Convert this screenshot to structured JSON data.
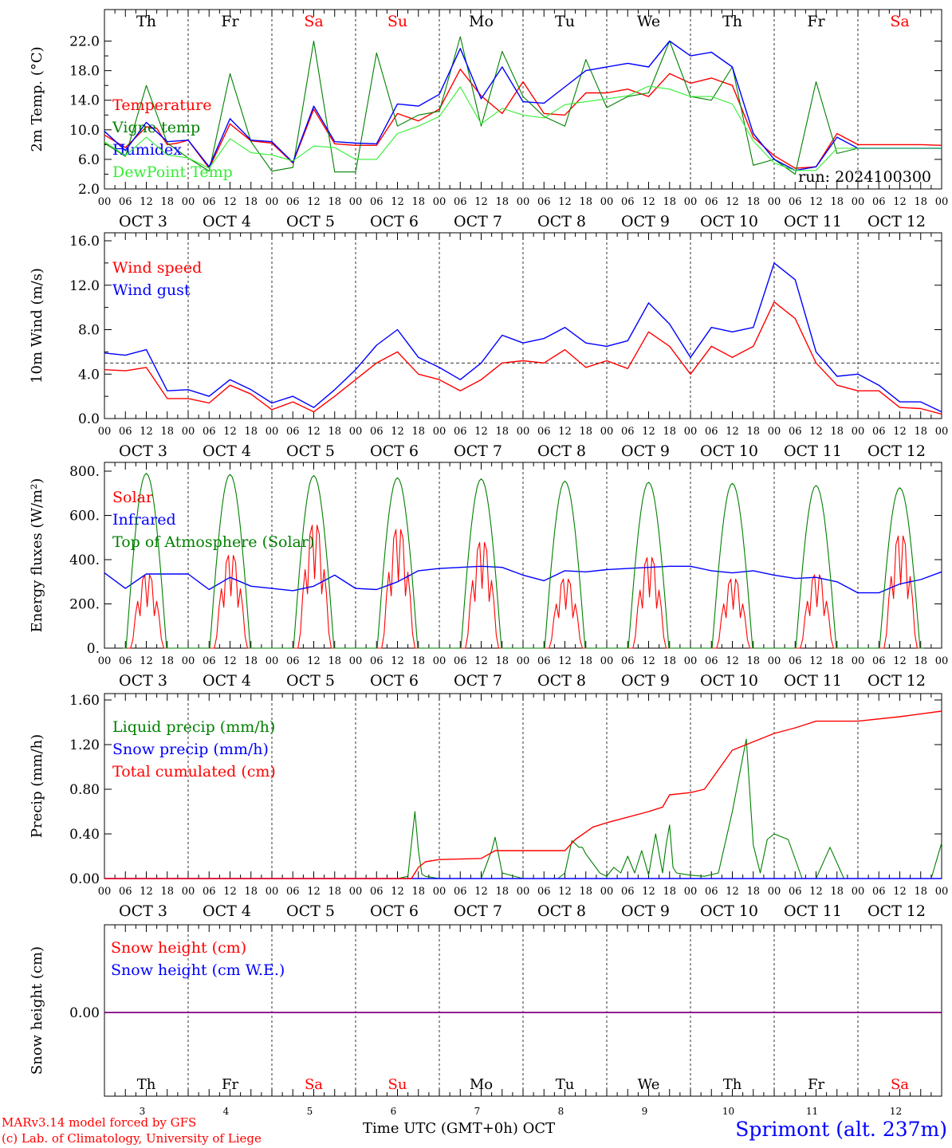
{
  "colors": {
    "red": "#ff0000",
    "green": "#008000",
    "blue": "#0000ff",
    "lightgreen": "#33ee33",
    "weekend": "#ff0000",
    "purple": "#800080"
  },
  "days": [
    "Th",
    "Fr",
    "Sa",
    "Su",
    "Mo",
    "Tu",
    "We",
    "Th",
    "Fr",
    "Sa"
  ],
  "weekend_days": [
    2,
    3,
    9
  ],
  "hour_ticks": [
    "00",
    "06",
    "12",
    "18"
  ],
  "date_labels": [
    "OCT  3",
    "OCT  4",
    "OCT  5",
    "OCT  6",
    "OCT  7",
    "OCT  8",
    "OCT  9",
    "OCT 10",
    "OCT 11",
    "OCT 12"
  ],
  "day_numbers": [
    "3",
    "4",
    "5",
    "6",
    "7",
    "8",
    "9",
    "10",
    "11",
    "12"
  ],
  "footer": {
    "credit_line1": "MARv3.14 model forced by GFS",
    "credit_line2": "(c) Lab. of Climatology, University of Liege",
    "xlabel": "Time UTC (GMT+0h) OCT",
    "station": "Sprimont (alt. 237m)"
  },
  "chart_data": [
    {
      "type": "line",
      "ylabel": "2m Temp. (°C)",
      "ylim": [
        2,
        24
      ],
      "yticks": [
        "2.0",
        "6.0",
        "10.0",
        "14.0",
        "18.0",
        "22.0"
      ],
      "yticks_values": [
        2,
        6,
        10,
        14,
        18,
        22
      ],
      "annotation": "run: 2024100300",
      "x_unit": "hours since Oct 3 00 UTC",
      "series": [
        {
          "name": "Temperature",
          "color": "red",
          "x": [
            0,
            6,
            12,
            15,
            18,
            21,
            24,
            30,
            36,
            42,
            48,
            54,
            60,
            66,
            72,
            78,
            84,
            90,
            96,
            102,
            108,
            114,
            120,
            126,
            132,
            138,
            144,
            150,
            156,
            162,
            168,
            174,
            180,
            186,
            192,
            198,
            204,
            210,
            216,
            222,
            228,
            234,
            240
          ],
          "y": [
            9.3,
            7.6,
            10.4,
            10.2,
            8.0,
            8.2,
            8.6,
            4.8,
            10.8,
            8.5,
            8.2,
            5.5,
            12.8,
            8.1,
            7.9,
            7.9,
            12.2,
            11.2,
            12.8,
            18.2,
            14.6,
            12.2,
            16.5,
            12.2,
            12.0,
            15.0,
            15.0,
            15.5,
            14.5,
            17.6,
            16.3,
            17.0,
            16.0,
            9.0,
            6.5,
            4.8,
            5.0,
            9.5,
            8.0,
            8.0,
            8.0,
            8.0,
            7.9
          ]
        },
        {
          "name": "Vigne temp",
          "color": "green",
          "x": [
            0,
            6,
            12,
            18,
            24,
            30,
            36,
            42,
            48,
            54,
            60,
            66,
            72,
            78,
            84,
            90,
            96,
            102,
            108,
            114,
            120,
            126,
            132,
            138,
            144,
            150,
            156,
            162,
            168,
            174,
            180,
            186,
            192,
            198,
            204,
            210,
            216,
            222,
            228,
            234,
            240
          ],
          "y": [
            8.2,
            6.4,
            16.0,
            8.2,
            6.2,
            4.4,
            17.6,
            8.4,
            4.4,
            4.9,
            22.0,
            4.3,
            4.3,
            20.4,
            10.5,
            12.0,
            12.5,
            22.6,
            10.5,
            20.6,
            14.5,
            11.8,
            10.5,
            19.5,
            13.0,
            14.5,
            15.0,
            22.0,
            14.5,
            14.0,
            18.5,
            5.2,
            6.0,
            4.0,
            16.5,
            6.8,
            7.5,
            7.5,
            7.5,
            7.5,
            7.5
          ]
        },
        {
          "name": "Humidex",
          "color": "blue",
          "x": [
            0,
            6,
            12,
            18,
            24,
            30,
            36,
            42,
            48,
            54,
            60,
            66,
            72,
            78,
            84,
            90,
            96,
            102,
            108,
            114,
            120,
            126,
            132,
            138,
            144,
            150,
            156,
            162,
            168,
            174,
            180,
            186,
            192,
            198,
            204,
            210,
            216,
            222,
            228,
            234,
            240
          ],
          "y": [
            9.8,
            7.2,
            11.0,
            8.4,
            8.6,
            5.0,
            11.5,
            8.6,
            8.4,
            5.6,
            13.2,
            8.4,
            8.2,
            8.1,
            13.5,
            13.2,
            14.8,
            21.0,
            14.2,
            18.5,
            13.8,
            13.6,
            15.8,
            18.0,
            18.5,
            19.0,
            18.5,
            22.0,
            20.0,
            20.5,
            18.5,
            9.5,
            6.0,
            4.5,
            5.0,
            9.0,
            7.5,
            7.5,
            7.5,
            7.5,
            7.5
          ]
        },
        {
          "name": "DewPoint Temp",
          "color": "lightgreen",
          "x": [
            0,
            6,
            12,
            18,
            24,
            30,
            36,
            42,
            48,
            54,
            60,
            66,
            72,
            78,
            84,
            90,
            96,
            102,
            108,
            114,
            120,
            126,
            132,
            138,
            144,
            150,
            156,
            162,
            168,
            174,
            180,
            186,
            192,
            198,
            204,
            210,
            216,
            222,
            228,
            234,
            240
          ],
          "y": [
            8.4,
            6.5,
            9.0,
            6.6,
            6.2,
            4.8,
            8.8,
            6.9,
            6.6,
            5.8,
            7.8,
            7.6,
            6.0,
            6.0,
            9.5,
            10.5,
            11.8,
            15.8,
            10.8,
            12.9,
            12.0,
            11.6,
            13.4,
            13.8,
            14.2,
            14.6,
            15.9,
            15.5,
            14.5,
            14.5,
            13.5,
            8.5,
            5.5,
            4.5,
            4.5,
            7.5,
            7.5,
            7.5,
            7.5,
            7.5,
            7.5
          ]
        }
      ]
    },
    {
      "type": "line",
      "ylabel": "10m Wind (m/s)",
      "ylim": [
        0,
        16
      ],
      "yticks": [
        "0.0",
        "4.0",
        "8.0",
        "12.0",
        "16.0"
      ],
      "yticks_values": [
        0,
        4,
        8,
        12,
        16
      ],
      "reference_line": 5,
      "x_unit": "hours since Oct 3 00 UTC",
      "series": [
        {
          "name": "Wind speed",
          "color": "red",
          "x": [
            0,
            6,
            12,
            18,
            24,
            30,
            36,
            42,
            48,
            54,
            60,
            66,
            72,
            78,
            84,
            90,
            96,
            102,
            108,
            114,
            120,
            126,
            132,
            138,
            144,
            150,
            156,
            162,
            168,
            174,
            180,
            186,
            192,
            198,
            204,
            210,
            216,
            222,
            228,
            234,
            240
          ],
          "y": [
            4.4,
            4.3,
            4.6,
            1.8,
            1.8,
            1.4,
            3.0,
            2.2,
            0.8,
            1.5,
            0.6,
            2.0,
            3.5,
            5.0,
            6.0,
            4.0,
            3.5,
            2.5,
            3.5,
            5.0,
            5.2,
            5.0,
            6.2,
            4.6,
            5.2,
            4.5,
            7.8,
            6.5,
            4.0,
            6.5,
            5.5,
            6.5,
            10.5,
            9.0,
            5.0,
            3.0,
            2.5,
            2.5,
            1.0,
            0.9,
            0.4
          ]
        },
        {
          "name": "Wind gust",
          "color": "blue",
          "x": [
            0,
            6,
            12,
            18,
            24,
            30,
            36,
            42,
            48,
            54,
            60,
            66,
            72,
            78,
            84,
            90,
            96,
            102,
            108,
            114,
            120,
            126,
            132,
            138,
            144,
            150,
            156,
            162,
            168,
            174,
            180,
            186,
            192,
            198,
            204,
            210,
            216,
            222,
            228,
            234,
            240
          ],
          "y": [
            5.9,
            5.7,
            6.2,
            2.5,
            2.6,
            2.0,
            3.5,
            2.6,
            1.4,
            2.0,
            1.0,
            2.6,
            4.4,
            6.6,
            8.0,
            5.5,
            4.6,
            3.5,
            5.0,
            7.5,
            6.8,
            7.2,
            8.2,
            6.8,
            6.5,
            7.0,
            10.4,
            8.5,
            5.5,
            8.2,
            7.8,
            8.2,
            14.0,
            12.5,
            6.0,
            3.8,
            4.0,
            3.0,
            1.5,
            1.5,
            0.6
          ]
        }
      ]
    },
    {
      "type": "line",
      "ylabel": "Energy fluxes (W/m²)",
      "ylim": [
        0,
        800
      ],
      "yticks": [
        "0.",
        "200.",
        "400.",
        "600.",
        "800."
      ],
      "yticks_values": [
        0,
        200,
        400,
        600,
        800
      ],
      "x_unit": "hours since Oct 3 00 UTC",
      "series": [
        {
          "name": "Solar",
          "color": "red",
          "day_peaks": [
            340,
            430,
            570,
            550,
            490,
            320,
            420,
            320,
            340,
            520
          ]
        },
        {
          "name": "Infrared",
          "color": "blue",
          "x": [
            0,
            6,
            12,
            18,
            24,
            30,
            36,
            42,
            48,
            54,
            60,
            66,
            72,
            78,
            84,
            90,
            96,
            102,
            108,
            114,
            120,
            126,
            132,
            138,
            144,
            150,
            156,
            162,
            168,
            174,
            180,
            186,
            192,
            198,
            204,
            210,
            216,
            222,
            228,
            234,
            240
          ],
          "y": [
            340,
            270,
            335,
            335,
            335,
            265,
            320,
            280,
            270,
            260,
            280,
            330,
            270,
            265,
            300,
            350,
            360,
            365,
            370,
            365,
            330,
            305,
            350,
            345,
            355,
            360,
            365,
            370,
            370,
            350,
            340,
            350,
            330,
            315,
            320,
            300,
            250,
            250,
            290,
            310,
            345
          ]
        },
        {
          "name": "Top of Atmosphere (Solar)",
          "color": "green",
          "day_peaks": [
            790,
            785,
            780,
            770,
            765,
            755,
            750,
            745,
            735,
            725
          ]
        }
      ]
    },
    {
      "type": "line",
      "ylabel": "Precip (mm/h)",
      "ylim": [
        0,
        1.6
      ],
      "yticks": [
        "0.00",
        "0.40",
        "0.80",
        "1.20",
        "1.60"
      ],
      "yticks_values": [
        0,
        0.4,
        0.8,
        1.2,
        1.6
      ],
      "x_unit": "hours since Oct 3 00 UTC",
      "series": [
        {
          "name": "Liquid precip (mm/h)",
          "color": "green",
          "x": [
            0,
            84,
            87,
            89,
            90,
            91,
            92,
            96,
            108,
            111,
            112,
            114,
            120,
            130,
            132,
            134,
            136,
            137,
            138,
            142,
            144,
            146,
            148,
            150,
            152,
            154,
            156,
            158,
            160,
            161,
            162,
            163,
            164,
            166,
            168,
            172,
            176,
            180,
            184,
            186,
            188,
            190,
            192,
            196,
            200,
            204,
            208,
            212,
            216,
            228,
            237,
            240
          ],
          "y": [
            0,
            0,
            0.02,
            0.6,
            0.25,
            0.04,
            0.02,
            0,
            0,
            0.25,
            0.37,
            0.05,
            0,
            0,
            0.05,
            0.34,
            0.28,
            0.28,
            0.22,
            0.05,
            0.02,
            0.1,
            0.05,
            0.2,
            0.05,
            0.25,
            0.03,
            0.4,
            0.05,
            0.3,
            0.48,
            0.1,
            0.05,
            0.04,
            0.03,
            0.02,
            0.05,
            0.6,
            1.25,
            0.3,
            0.05,
            0.35,
            0.4,
            0.35,
            0,
            0,
            0.28,
            0,
            0,
            0,
            0,
            0.32
          ]
        },
        {
          "name": "Snow precip (mm/h)",
          "color": "blue",
          "x": [
            0,
            240
          ],
          "y": [
            0,
            0
          ]
        },
        {
          "name": "Total cumulated (cm)",
          "color": "red",
          "x": [
            0,
            88,
            90,
            92,
            96,
            108,
            112,
            114,
            132,
            135,
            140,
            144,
            156,
            160,
            162,
            168,
            172,
            180,
            192,
            198,
            204,
            216,
            228,
            240
          ],
          "y": [
            0,
            0,
            0.1,
            0.15,
            0.17,
            0.18,
            0.25,
            0.25,
            0.25,
            0.35,
            0.46,
            0.5,
            0.6,
            0.64,
            0.75,
            0.77,
            0.8,
            1.15,
            1.3,
            1.35,
            1.41,
            1.41,
            1.45,
            1.5
          ]
        }
      ]
    },
    {
      "type": "line",
      "ylabel": "Snow height (cm)",
      "yticks": [
        "0.00"
      ],
      "yticks_values": [
        0
      ],
      "x_unit": "hours since Oct 3 00 UTC",
      "series": [
        {
          "name": "Snow height (cm)",
          "color": "red",
          "x": [
            0,
            240
          ],
          "y": [
            0,
            0
          ]
        },
        {
          "name": "Snow height (cm W.E.)",
          "color": "blue",
          "x": [
            0,
            240
          ],
          "y": [
            0,
            0
          ]
        }
      ]
    }
  ]
}
